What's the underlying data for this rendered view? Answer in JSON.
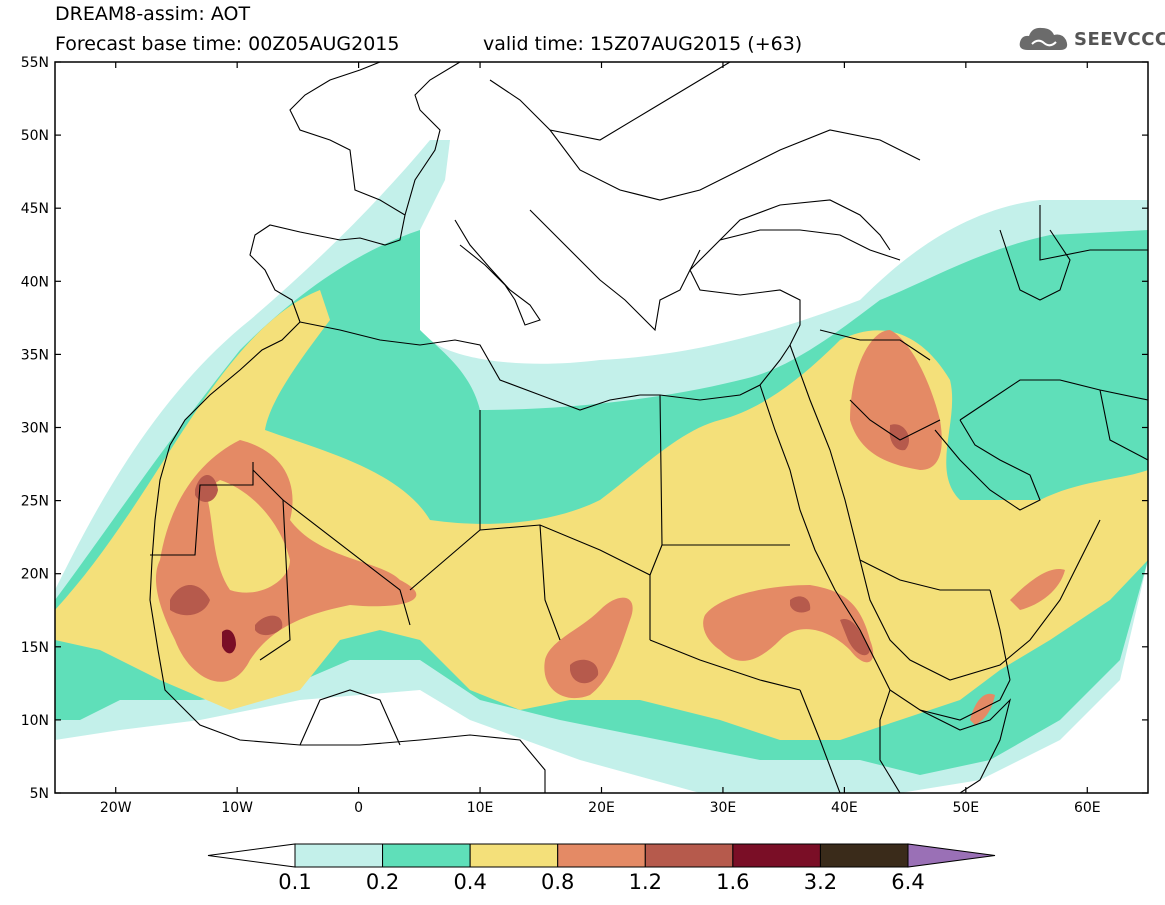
{
  "header": {
    "title_line1": "DREAM8-assim: AOT",
    "base_time": "Forecast base time: 00Z05AUG2015",
    "valid_time": "valid time: 15Z07AUG2015 (+63)"
  },
  "logo": {
    "text": "SEEVCCC",
    "icon": "cloud-icon"
  },
  "map": {
    "variable": "AOT",
    "lon_range": [
      -25,
      65
    ],
    "lat_range": [
      5,
      55
    ],
    "lon_ticks": [
      "20W",
      "10W",
      "0",
      "10E",
      "20E",
      "30E",
      "40E",
      "50E",
      "60E"
    ],
    "lat_ticks": [
      "55N",
      "50N",
      "45N",
      "40N",
      "35N",
      "30N",
      "25N",
      "20N",
      "15N",
      "10N",
      "5N"
    ]
  },
  "colorbar": {
    "levels": [
      "0.1",
      "0.2",
      "0.4",
      "0.8",
      "1.2",
      "1.6",
      "3.2",
      "6.4"
    ],
    "colors": [
      "#c3f0ea",
      "#5fdfb9",
      "#f4e07a",
      "#e48a65",
      "#b65a4c",
      "#7a0e26",
      "#3a2b1a"
    ],
    "under_color": "#ffffff",
    "over_color": "#9a70b6"
  }
}
